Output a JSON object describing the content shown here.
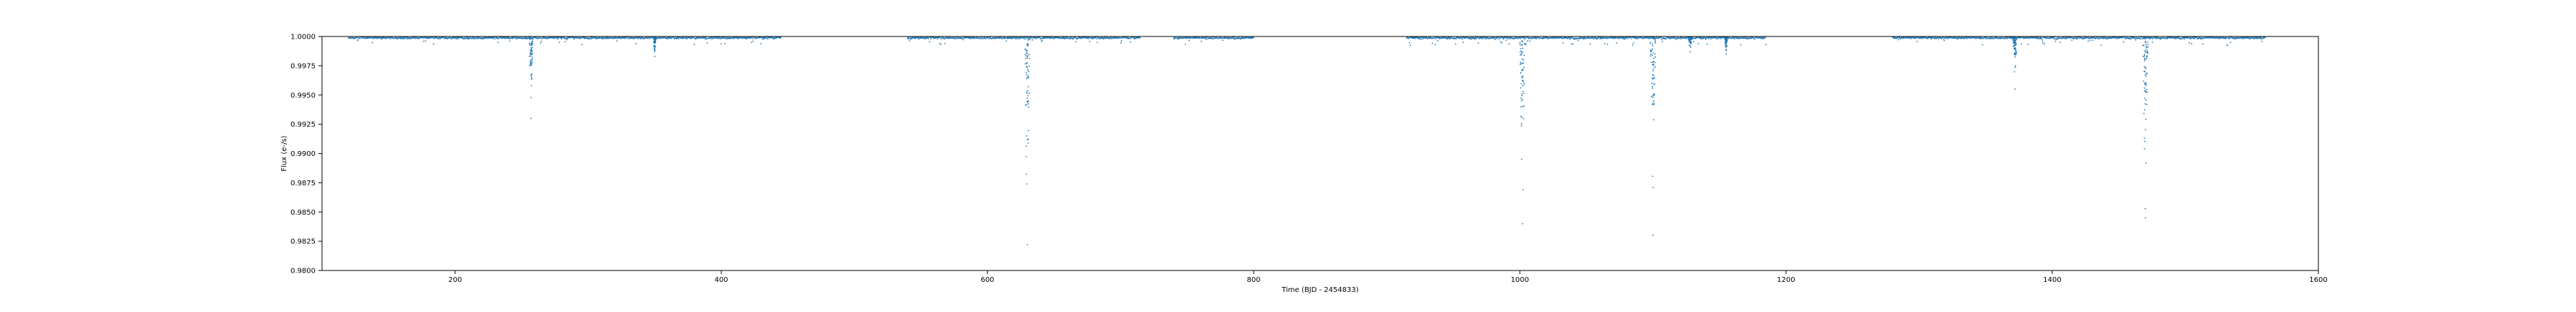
{
  "chart_data": {
    "type": "scatter",
    "title": "",
    "xlabel": "Time (BJD - 2454833)",
    "ylabel": "Flux (e-/s)",
    "xlim": [
      100,
      1600
    ],
    "ylim": [
      0.98,
      1.0
    ],
    "xticks": [
      200,
      400,
      600,
      800,
      1000,
      1200,
      1400,
      1600
    ],
    "yticks": [
      1.0,
      0.9975,
      0.995,
      0.9925,
      0.99,
      0.9875,
      0.985,
      0.9825,
      0.98
    ],
    "xtick_labels": [
      "200",
      "400",
      "600",
      "800",
      "1000",
      "1200",
      "1400",
      "1600"
    ],
    "ytick_labels": [
      "1.0000",
      "0.9975",
      "0.9950",
      "0.9925",
      "0.9900",
      "0.9875",
      "0.9850",
      "0.9825",
      "0.9800"
    ],
    "grid": false,
    "legend": "none",
    "marker_color": "#1f77b4",
    "observing_segments": [
      [
        120,
        445
      ],
      [
        540,
        715
      ],
      [
        740,
        800
      ],
      [
        915,
        1185
      ],
      [
        1280,
        1560
      ]
    ],
    "baseline_flux": 0.99995,
    "dips": [
      {
        "x": 257,
        "depth": 0.993,
        "width": 3
      },
      {
        "x": 350,
        "depth": 0.9983,
        "width": 2
      },
      {
        "x": 630,
        "depth": 0.9822,
        "width": 4
      },
      {
        "x": 1002,
        "depth": 0.984,
        "width": 4
      },
      {
        "x": 1100,
        "depth": 0.983,
        "width": 4
      },
      {
        "x": 1128,
        "depth": 0.9987,
        "width": 3
      },
      {
        "x": 1155,
        "depth": 0.9985,
        "width": 2
      },
      {
        "x": 1372,
        "depth": 0.9955,
        "width": 3
      },
      {
        "x": 1470,
        "depth": 0.9845,
        "width": 4
      }
    ]
  }
}
